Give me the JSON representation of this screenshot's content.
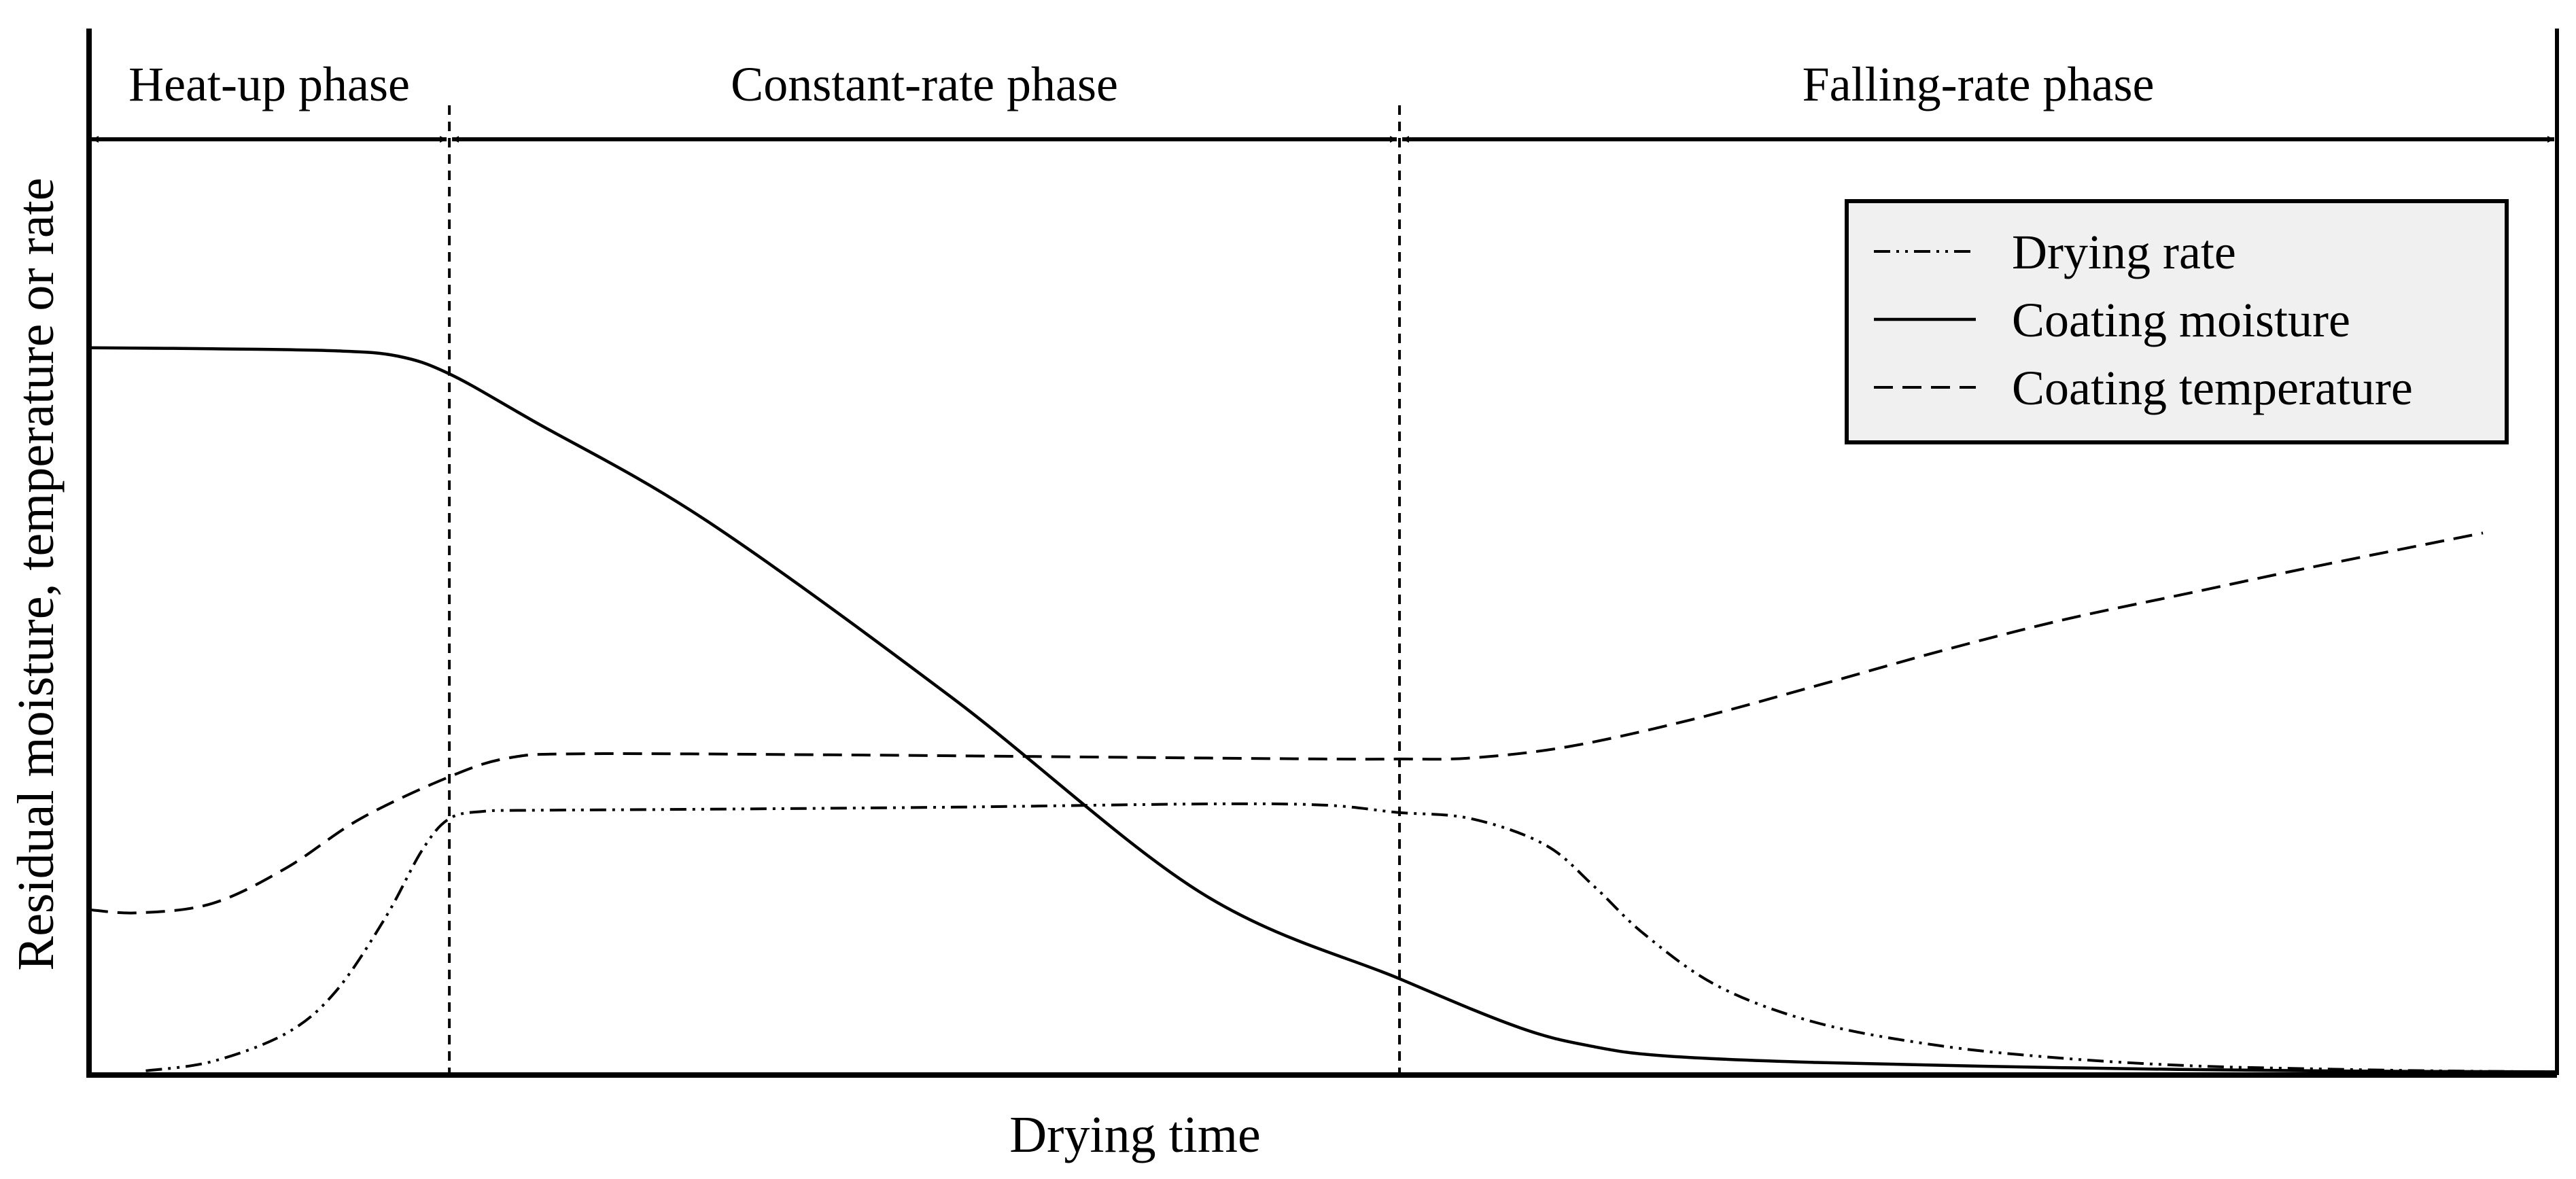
{
  "chart_data": {
    "type": "line",
    "title": "",
    "xlabel": "Drying time",
    "ylabel": "Residual moisture, temperature or rate",
    "xlim": [
      0,
      100
    ],
    "ylim": [
      0,
      100
    ],
    "grid": false,
    "x_ticks": "none",
    "y_ticks": "none",
    "legend_position": "top-right",
    "phases": [
      {
        "label": "Heat-up phase",
        "start": 0,
        "end": 14.6
      },
      {
        "label": "Constant-rate phase",
        "start": 14.6,
        "end": 53.1
      },
      {
        "label": "Falling-rate phase",
        "start": 53.1,
        "end": 100
      }
    ],
    "phase_boundaries": [
      14.6,
      53.1
    ],
    "series": [
      {
        "name": "Drying rate",
        "style": "dash-dot-dot",
        "x": [
          2.3,
          5,
          8,
          10,
          12,
          13.5,
          14.6,
          16,
          18,
          25,
          35,
          45,
          50,
          53,
          56,
          59,
          61,
          63,
          66,
          70,
          75,
          80,
          85,
          90,
          95,
          100
        ],
        "y": [
          0.4,
          1.3,
          4,
          8,
          15,
          21.5,
          24.5,
          25.2,
          25.3,
          25.4,
          25.6,
          25.9,
          25.8,
          25.1,
          24.5,
          22,
          18,
          13.5,
          8.5,
          5,
          2.8,
          1.6,
          0.9,
          0.6,
          0.4,
          0.3
        ]
      },
      {
        "name": "Coating moisture",
        "style": "solid",
        "x": [
          0,
          5,
          10,
          12.5,
          14.6,
          18,
          25,
          35,
          45,
          53.1,
          58,
          61,
          64,
          70,
          80,
          90,
          100
        ],
        "y": [
          69.5,
          69.4,
          69.2,
          68.7,
          67,
          62.5,
          53,
          36,
          17.5,
          9.2,
          4.5,
          2.7,
          1.8,
          1.2,
          0.7,
          0.4,
          0.3
        ]
      },
      {
        "name": "Coating temperature",
        "style": "dashed",
        "x": [
          0,
          2,
          5,
          8,
          11,
          14.6,
          17,
          20,
          30,
          40,
          50,
          53.1,
          56,
          60,
          65,
          70,
          75,
          80,
          85,
          90,
          97
        ],
        "y": [
          15.8,
          15.5,
          16.4,
          19.8,
          24.5,
          28.5,
          30.3,
          30.7,
          30.6,
          30.4,
          30.2,
          30.2,
          30.3,
          31.4,
          34,
          37.2,
          40.5,
          43.5,
          46,
          48.5,
          51.8
        ]
      }
    ]
  }
}
